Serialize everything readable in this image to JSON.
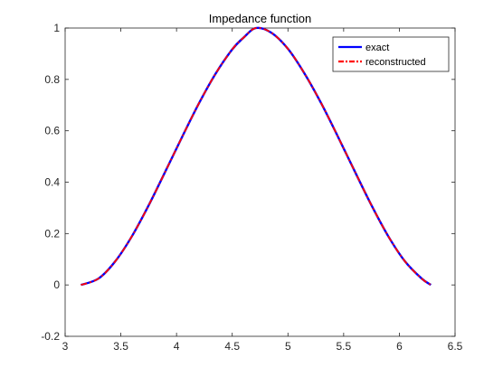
{
  "chart_data": {
    "type": "line",
    "title": "Impedance function",
    "xlabel": "",
    "ylabel": "",
    "xlim": [
      3,
      6.5
    ],
    "ylim": [
      -0.2,
      1
    ],
    "xticks": [
      3,
      3.5,
      4,
      4.5,
      5,
      5.5,
      6,
      6.5
    ],
    "yticks": [
      -0.2,
      0,
      0.2,
      0.4,
      0.6,
      0.8,
      1
    ],
    "xtick_labels": [
      "3",
      "3.5",
      "4",
      "4.5",
      "5",
      "5.5",
      "6",
      "6.5"
    ],
    "ytick_labels": [
      "-0.2",
      "0",
      "0.2",
      "0.4",
      "0.6",
      "0.8",
      "1"
    ],
    "grid": false,
    "legend_position": "top-right",
    "x": [
      3.1416,
      3.3,
      3.45,
      3.6,
      3.75,
      3.9,
      4.05,
      4.2,
      4.35,
      4.5,
      4.6,
      4.7124,
      4.85,
      5.0,
      5.15,
      5.3,
      5.45,
      5.6,
      5.75,
      5.9,
      6.05,
      6.2,
      6.2832
    ],
    "series": [
      {
        "name": "exact",
        "color": "#0000ff",
        "style": "solid",
        "values": [
          0.0,
          0.025,
          0.092,
          0.19,
          0.31,
          0.442,
          0.576,
          0.706,
          0.822,
          0.917,
          0.962,
          1.0,
          0.982,
          0.919,
          0.822,
          0.706,
          0.576,
          0.442,
          0.31,
          0.19,
          0.092,
          0.025,
          0.0
        ]
      },
      {
        "name": "reconstructed",
        "color": "#ff0000",
        "style": "dashdot",
        "values": [
          0.0,
          0.025,
          0.092,
          0.19,
          0.31,
          0.442,
          0.576,
          0.706,
          0.822,
          0.917,
          0.962,
          1.0,
          0.982,
          0.919,
          0.822,
          0.706,
          0.576,
          0.442,
          0.31,
          0.19,
          0.092,
          0.025,
          0.0
        ]
      }
    ]
  }
}
